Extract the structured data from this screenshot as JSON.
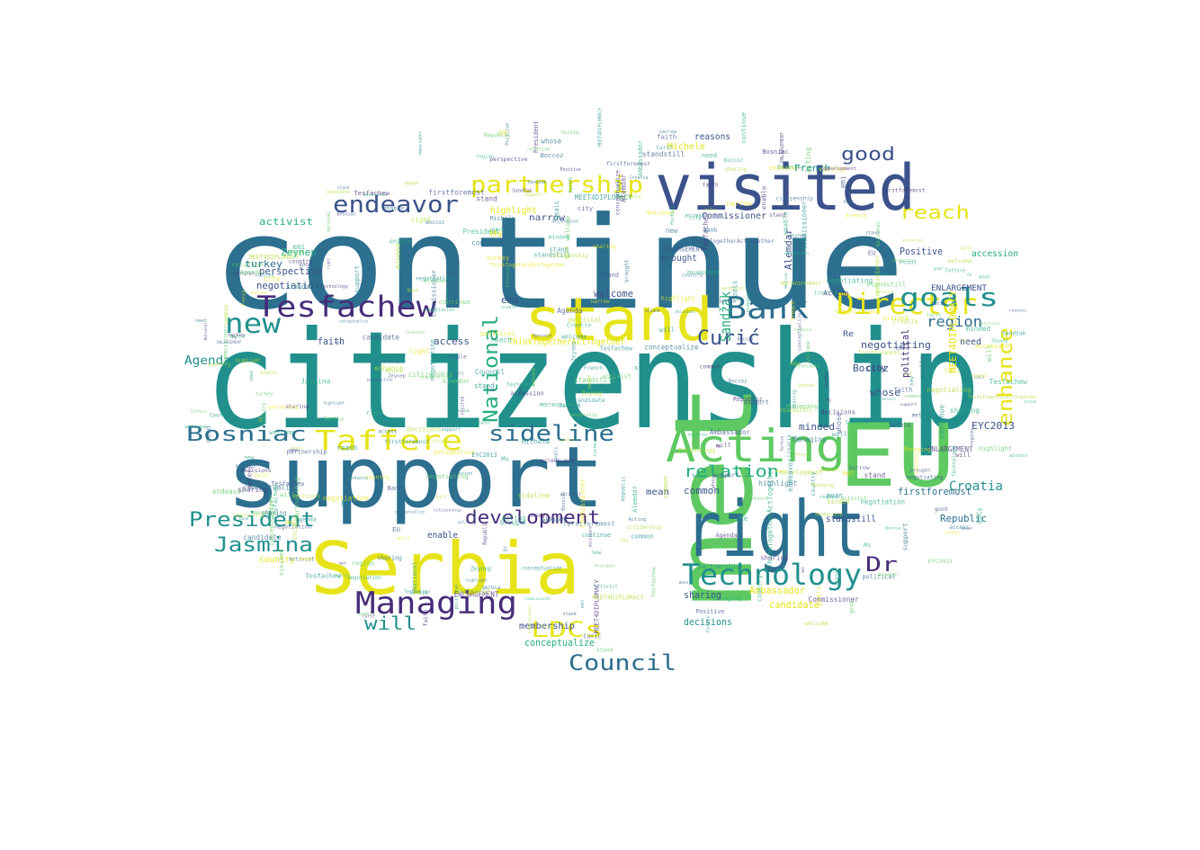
{
  "palette": {
    "teal": "#21908d",
    "blue": "#2c6f8e",
    "navy": "#3b528b",
    "purple": "#472c7a",
    "green": "#5ec962",
    "lime": "#addc30",
    "yellow": "#e6e419",
    "aqua": "#27ad81",
    "background": "#ffffff"
  },
  "words": {
    "continue": "continue",
    "citizenship": "citizenship",
    "support": "support",
    "met": "met",
    "EU": "EU",
    "visited": "visited",
    "right": "right",
    "Serbia": "Serbia",
    "stand": "stand",
    "Acting": "Acting",
    "Tesfachew": "Tesfachew",
    "Managing": "Managing",
    "Technology": "Technology",
    "Bank": "Bank",
    "Director": "Director",
    "partnership": "partnership",
    "new": "new",
    "goals": "goals",
    "endeavor": "endeavor",
    "Taffere": "Taffere",
    "Bosniac": "Bosniac",
    "President": "President",
    "Jasmina": "Jasmina",
    "Council": "Council",
    "sideline": "sideline",
    "development": "development",
    "LDCs": "LDCs",
    "National": "National",
    "reach": "reach",
    "good": "good",
    "enhance": "enhance",
    "relation": "relation",
    "Curic": "Curić",
    "Dr": "Dr",
    "will": "will",
    "region": "region",
    "Sandzak": "Sandžak",
    "Croatia": "Croatia",
    "Agenda": "Agenda",
    "turkey": "turkey",
    "activist": "activist",
    "access": "access",
    "negotiating": "negotiating",
    "negotiation": "negotiation",
    "perspective": "perspective",
    "conceptualize": "conceptualize",
    "firstforemost": "firstforemost",
    "highlight": "highlight",
    "narrow": "narrow",
    "MEET4DIPLOMACY": "MEET4DIPLOMACY",
    "ThinkTogetherActTogether": "ThinkTogetherActTogether",
    "Commissioner": "Commissioner",
    "candidate": "candidate",
    "Ambassador": "Ambassador",
    "Republic": "Republic",
    "Alemdar": "Alemdar",
    "Zeynep": "Zeynep",
    "Boccoz": "Boccoz",
    "EYC2013": "EYC2013",
    "ENLARGEMENT": "ENLARGEMENT",
    "membership": "membership",
    "Michele": "Michele",
    "French": "French",
    "political": "political",
    "faith": "faith",
    "minded": "minded",
    "decisions": "decisions",
    "sharing": "sharing",
    "brought": "brought",
    "welcome": "welcome",
    "Positive": "Positive",
    "common": "common",
    "whose": "whose",
    "mean": "mean",
    "emi": "emi",
    "standstill": "standstill",
    "Ms": "Ms",
    "need": "need",
    "city": "city",
    "reasons": "reasons",
    "enable": "enable",
    "accession": "accession",
    "country": "country",
    "Re": "Re"
  }
}
